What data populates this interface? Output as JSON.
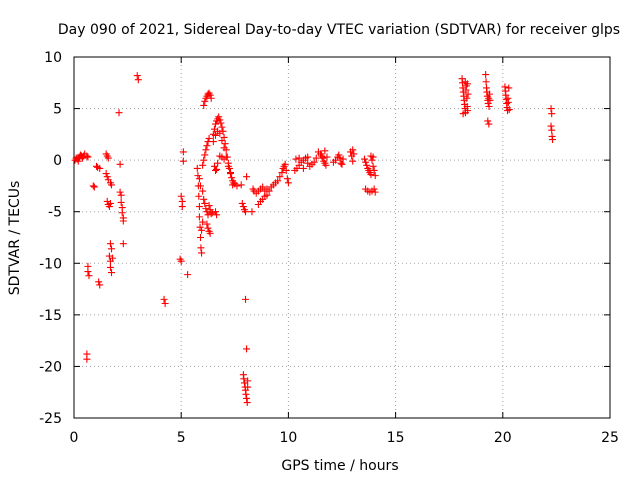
{
  "chart_data": {
    "type": "scatter",
    "title": "Day 090 of 2021, Sidereal Day-to-day VTEC variation (SDTVAR) for receiver glps",
    "xlabel": "GPS time / hours",
    "ylabel": "SDTVAR / TECUs",
    "xlim": [
      0,
      25
    ],
    "ylim": [
      -25,
      10
    ],
    "xticks": [
      0,
      5,
      10,
      15,
      20,
      25
    ],
    "yticks": [
      -25,
      -20,
      -15,
      -10,
      -5,
      0,
      5,
      10
    ],
    "grid": true,
    "marker": "+",
    "color": "#ff0000",
    "series": [
      {
        "name": "SDTVAR",
        "points": [
          [
            0.05,
            0.0
          ],
          [
            0.1,
            0.2
          ],
          [
            0.15,
            0.1
          ],
          [
            0.2,
            -0.1
          ],
          [
            0.25,
            0.3
          ],
          [
            0.3,
            0.5
          ],
          [
            0.35,
            0.4
          ],
          [
            0.4,
            0.2
          ],
          [
            0.45,
            0.4
          ],
          [
            0.5,
            0.6
          ],
          [
            0.6,
            0.4
          ],
          [
            0.65,
            0.3
          ],
          [
            0.6,
            -18.8
          ],
          [
            0.6,
            -19.3
          ],
          [
            0.65,
            -10.3
          ],
          [
            0.65,
            -10.8
          ],
          [
            0.7,
            -11.2
          ],
          [
            0.9,
            -2.5
          ],
          [
            0.95,
            -2.6
          ],
          [
            1.05,
            -0.6
          ],
          [
            1.1,
            -0.7
          ],
          [
            1.2,
            -0.8
          ],
          [
            1.15,
            -11.8
          ],
          [
            1.2,
            -12.1
          ],
          [
            1.5,
            0.6
          ],
          [
            1.55,
            0.4
          ],
          [
            1.6,
            0.2
          ],
          [
            1.5,
            -1.3
          ],
          [
            1.55,
            -1.6
          ],
          [
            1.6,
            -1.9
          ],
          [
            1.55,
            -4.0
          ],
          [
            1.6,
            -4.3
          ],
          [
            1.65,
            -4.5
          ],
          [
            1.7,
            -4.2
          ],
          [
            1.7,
            -2.2
          ],
          [
            1.75,
            -2.4
          ],
          [
            1.7,
            -8.1
          ],
          [
            1.75,
            -8.6
          ],
          [
            1.65,
            -9.3
          ],
          [
            1.7,
            -9.8
          ],
          [
            1.7,
            -10.4
          ],
          [
            1.75,
            -10.9
          ],
          [
            1.8,
            -9.5
          ],
          [
            2.1,
            4.6
          ],
          [
            2.15,
            -0.4
          ],
          [
            2.15,
            -3.1
          ],
          [
            2.2,
            -3.4
          ],
          [
            2.2,
            -4.1
          ],
          [
            2.25,
            -4.6
          ],
          [
            2.25,
            -5.1
          ],
          [
            2.3,
            -5.6
          ],
          [
            2.3,
            -5.9
          ],
          [
            2.3,
            -8.1
          ],
          [
            2.95,
            8.2
          ],
          [
            3.0,
            7.8
          ],
          [
            4.2,
            -13.5
          ],
          [
            4.25,
            -13.9
          ],
          [
            4.95,
            -9.6
          ],
          [
            5.0,
            -9.8
          ],
          [
            5.0,
            -3.5
          ],
          [
            5.05,
            -4.0
          ],
          [
            5.05,
            -4.5
          ],
          [
            5.1,
            0.8
          ],
          [
            5.1,
            -0.1
          ],
          [
            5.3,
            -11.1
          ],
          [
            5.75,
            -0.8
          ],
          [
            5.78,
            -1.5
          ],
          [
            5.8,
            -2.5
          ],
          [
            5.82,
            -3.5
          ],
          [
            5.85,
            -4.5
          ],
          [
            5.85,
            -5.5
          ],
          [
            5.88,
            -6.5
          ],
          [
            5.9,
            -7.5
          ],
          [
            5.92,
            -8.5
          ],
          [
            5.95,
            -9.0
          ],
          [
            5.95,
            -6.8
          ],
          [
            6.0,
            -6.0
          ],
          [
            5.85,
            -1.8
          ],
          [
            5.9,
            -2.5
          ],
          [
            6.0,
            -3.0
          ],
          [
            6.05,
            -3.8
          ],
          [
            6.1,
            -4.2
          ],
          [
            6.15,
            -4.7
          ],
          [
            6.2,
            -5.0
          ],
          [
            6.25,
            -5.3
          ],
          [
            6.3,
            -4.4
          ],
          [
            6.35,
            -4.8
          ],
          [
            6.4,
            -5.2
          ],
          [
            6.45,
            -5.1
          ],
          [
            6.0,
            -0.5
          ],
          [
            6.05,
            0.0
          ],
          [
            6.1,
            0.5
          ],
          [
            6.15,
            1.0
          ],
          [
            6.2,
            1.4
          ],
          [
            6.25,
            1.8
          ],
          [
            6.3,
            2.1
          ],
          [
            6.05,
            5.3
          ],
          [
            6.1,
            5.7
          ],
          [
            6.15,
            6.0
          ],
          [
            6.2,
            6.2
          ],
          [
            6.25,
            6.4
          ],
          [
            6.3,
            6.5
          ],
          [
            6.35,
            6.3
          ],
          [
            6.4,
            6.0
          ],
          [
            6.2,
            -6.2
          ],
          [
            6.25,
            -6.6
          ],
          [
            6.3,
            -6.9
          ],
          [
            6.35,
            -7.1
          ],
          [
            6.5,
            2.5
          ],
          [
            6.55,
            3.0
          ],
          [
            6.6,
            3.5
          ],
          [
            6.65,
            3.8
          ],
          [
            6.7,
            4.0
          ],
          [
            6.75,
            4.2
          ],
          [
            6.8,
            3.9
          ],
          [
            6.85,
            3.6
          ],
          [
            6.9,
            3.2
          ],
          [
            6.95,
            2.8
          ],
          [
            7.0,
            2.2
          ],
          [
            7.05,
            1.6
          ],
          [
            7.1,
            1.0
          ],
          [
            7.15,
            0.3
          ],
          [
            7.2,
            -0.3
          ],
          [
            7.25,
            -0.8
          ],
          [
            7.3,
            -1.3
          ],
          [
            7.35,
            -1.7
          ],
          [
            7.4,
            -2.0
          ],
          [
            7.45,
            -2.2
          ],
          [
            7.5,
            -2.3
          ],
          [
            6.5,
            1.8
          ],
          [
            6.6,
            2.4
          ],
          [
            6.7,
            2.8
          ],
          [
            6.8,
            2.6
          ],
          [
            6.9,
            1.9
          ],
          [
            7.0,
            1.2
          ],
          [
            7.1,
            0.3
          ],
          [
            7.2,
            -0.6
          ],
          [
            7.3,
            -1.2
          ],
          [
            6.55,
            -0.6
          ],
          [
            6.6,
            -1.0
          ],
          [
            6.65,
            -0.9
          ],
          [
            6.7,
            -0.3
          ],
          [
            6.8,
            0.4
          ],
          [
            6.9,
            0.3
          ],
          [
            7.0,
            0.1
          ],
          [
            6.6,
            -5.0
          ],
          [
            6.65,
            -5.3
          ],
          [
            7.4,
            -2.4
          ],
          [
            7.6,
            -2.5
          ],
          [
            7.8,
            -2.4
          ],
          [
            7.85,
            -4.2
          ],
          [
            7.9,
            -4.5
          ],
          [
            7.95,
            -4.8
          ],
          [
            8.0,
            -5.0
          ],
          [
            8.05,
            -1.6
          ],
          [
            8.0,
            -13.5
          ],
          [
            8.05,
            -18.3
          ],
          [
            7.9,
            -20.8
          ],
          [
            7.92,
            -21.2
          ],
          [
            7.95,
            -21.6
          ],
          [
            7.98,
            -22.0
          ],
          [
            8.0,
            -22.3
          ],
          [
            8.02,
            -22.7
          ],
          [
            8.05,
            -23.1
          ],
          [
            8.08,
            -23.5
          ],
          [
            8.1,
            -21.4
          ],
          [
            8.1,
            -22.0
          ],
          [
            8.3,
            -5.0
          ],
          [
            8.35,
            -2.8
          ],
          [
            8.4,
            -3.0
          ],
          [
            8.5,
            -3.2
          ],
          [
            8.6,
            -3.0
          ],
          [
            8.7,
            -2.8
          ],
          [
            8.8,
            -2.6
          ],
          [
            8.9,
            -3.0
          ],
          [
            9.0,
            -2.8
          ],
          [
            8.6,
            -4.3
          ],
          [
            8.7,
            -4.0
          ],
          [
            8.8,
            -3.8
          ],
          [
            8.9,
            -3.5
          ],
          [
            9.0,
            -3.4
          ],
          [
            9.1,
            -3.0
          ],
          [
            9.2,
            -2.6
          ],
          [
            9.3,
            -2.4
          ],
          [
            9.4,
            -2.2
          ],
          [
            9.5,
            -2.0
          ],
          [
            9.6,
            -1.6
          ],
          [
            9.7,
            -1.2
          ],
          [
            9.75,
            -0.8
          ],
          [
            9.8,
            -0.6
          ],
          [
            9.85,
            -0.4
          ],
          [
            9.9,
            -1.0
          ],
          [
            9.95,
            -1.8
          ],
          [
            10.0,
            -2.2
          ],
          [
            10.3,
            -1.0
          ],
          [
            10.4,
            -0.8
          ],
          [
            10.5,
            -0.5
          ],
          [
            10.6,
            -0.2
          ],
          [
            10.7,
            0.0
          ],
          [
            10.8,
            0.2
          ],
          [
            10.9,
            -0.3
          ],
          [
            11.0,
            -0.6
          ],
          [
            11.1,
            -0.4
          ],
          [
            11.2,
            -0.2
          ],
          [
            11.3,
            0.2
          ],
          [
            10.35,
            0.1
          ],
          [
            10.5,
            0.2
          ],
          [
            10.7,
            -0.8
          ],
          [
            10.9,
            0.3
          ],
          [
            11.4,
            0.8
          ],
          [
            11.5,
            0.6
          ],
          [
            11.55,
            0.4
          ],
          [
            11.6,
            0.2
          ],
          [
            11.65,
            -0.1
          ],
          [
            11.7,
            -0.3
          ],
          [
            11.75,
            -0.5
          ],
          [
            11.8,
            0.3
          ],
          [
            11.7,
            0.9
          ],
          [
            12.1,
            -0.2
          ],
          [
            12.2,
            0.0
          ],
          [
            12.3,
            0.3
          ],
          [
            12.35,
            0.5
          ],
          [
            12.4,
            0.2
          ],
          [
            12.45,
            -0.3
          ],
          [
            12.5,
            -0.4
          ],
          [
            12.55,
            0.1
          ],
          [
            12.9,
            0.8
          ],
          [
            12.95,
            0.4
          ],
          [
            13.0,
            -0.1
          ],
          [
            13.05,
            0.6
          ],
          [
            13.0,
            1.0
          ],
          [
            13.55,
            0.1
          ],
          [
            13.6,
            -0.2
          ],
          [
            13.65,
            -0.5
          ],
          [
            13.7,
            -0.8
          ],
          [
            13.75,
            -1.0
          ],
          [
            13.8,
            -1.2
          ],
          [
            13.85,
            -1.4
          ],
          [
            13.9,
            0.0
          ],
          [
            13.95,
            -0.6
          ],
          [
            14.0,
            -1.0
          ],
          [
            14.05,
            -1.5
          ],
          [
            13.85,
            0.4
          ],
          [
            13.95,
            0.3
          ],
          [
            13.6,
            -2.8
          ],
          [
            13.7,
            -3.0
          ],
          [
            13.8,
            -3.1
          ],
          [
            13.9,
            -3.0
          ],
          [
            14.0,
            -2.8
          ],
          [
            14.05,
            -3.1
          ],
          [
            18.1,
            7.9
          ],
          [
            18.12,
            7.5
          ],
          [
            18.14,
            7.0
          ],
          [
            18.16,
            6.6
          ],
          [
            18.18,
            6.2
          ],
          [
            18.2,
            5.8
          ],
          [
            18.22,
            5.4
          ],
          [
            18.24,
            5.0
          ],
          [
            18.26,
            4.6
          ],
          [
            18.28,
            6.8
          ],
          [
            18.3,
            7.2
          ],
          [
            18.32,
            6.0
          ],
          [
            18.34,
            5.2
          ],
          [
            18.36,
            4.8
          ],
          [
            18.38,
            6.4
          ],
          [
            18.15,
            4.5
          ],
          [
            18.25,
            7.6
          ],
          [
            18.35,
            7.4
          ],
          [
            19.2,
            8.3
          ],
          [
            19.22,
            7.6
          ],
          [
            19.24,
            7.0
          ],
          [
            19.26,
            6.6
          ],
          [
            19.28,
            6.2
          ],
          [
            19.3,
            5.8
          ],
          [
            19.32,
            5.5
          ],
          [
            19.34,
            6.0
          ],
          [
            19.36,
            5.2
          ],
          [
            19.38,
            6.4
          ],
          [
            19.4,
            5.8
          ],
          [
            19.3,
            3.8
          ],
          [
            19.35,
            3.5
          ],
          [
            20.1,
            7.1
          ],
          [
            20.12,
            6.7
          ],
          [
            20.14,
            6.3
          ],
          [
            20.16,
            5.9
          ],
          [
            20.18,
            5.5
          ],
          [
            20.2,
            5.1
          ],
          [
            20.22,
            4.8
          ],
          [
            20.24,
            6.0
          ],
          [
            20.26,
            5.6
          ],
          [
            20.28,
            7.0
          ],
          [
            20.3,
            4.9
          ],
          [
            22.25,
            5.0
          ],
          [
            22.28,
            4.5
          ],
          [
            22.25,
            3.3
          ],
          [
            22.28,
            2.9
          ],
          [
            22.3,
            2.3
          ],
          [
            22.32,
            2.0
          ]
        ]
      }
    ]
  }
}
